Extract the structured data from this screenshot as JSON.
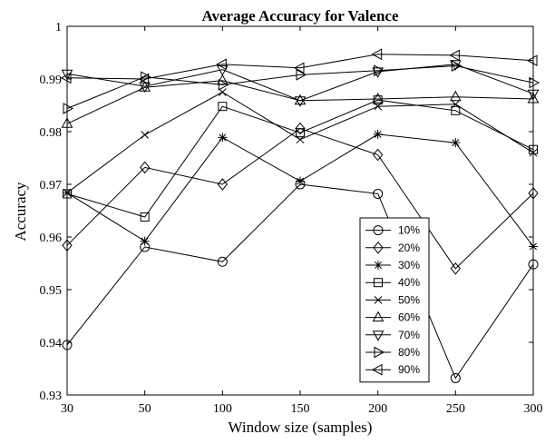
{
  "chart_data": {
    "type": "line",
    "title": "Average Accuracy for Valence",
    "xlabel": "Window size (samples)",
    "ylabel": "Accuracy",
    "categories": [
      "30",
      "50",
      "100",
      "150",
      "200",
      "250",
      "300"
    ],
    "ylim": [
      0.93,
      1.0
    ],
    "yticks": [
      "0.93",
      "0.94",
      "0.95",
      "0.96",
      "0.97",
      "0.98",
      "0.99",
      "1"
    ],
    "legend_position": "lower-right",
    "grid": false,
    "line_color": "#000000",
    "series": [
      {
        "name": "10%",
        "marker": "circle",
        "values": [
          0.9395,
          0.9581,
          0.9553,
          0.97,
          0.9682,
          0.9332,
          0.9548
        ]
      },
      {
        "name": "20%",
        "marker": "diamond",
        "values": [
          0.9584,
          0.9732,
          0.97,
          0.9806,
          0.9756,
          0.954,
          0.9683
        ]
      },
      {
        "name": "30%",
        "marker": "asterisk",
        "values": [
          0.9684,
          0.9592,
          0.9789,
          0.9706,
          0.9795,
          0.9779,
          0.9582
        ]
      },
      {
        "name": "40%",
        "marker": "square",
        "values": [
          0.9682,
          0.9638,
          0.9848,
          0.9798,
          0.986,
          0.984,
          0.9766
        ]
      },
      {
        "name": "50%",
        "marker": "x",
        "values": [
          0.9684,
          0.9794,
          0.9875,
          0.9785,
          0.9848,
          0.9852,
          0.976
        ]
      },
      {
        "name": "60%",
        "marker": "triangle-up",
        "values": [
          0.9815,
          0.9884,
          0.9897,
          0.9859,
          0.9862,
          0.9866,
          0.9862
        ]
      },
      {
        "name": "70%",
        "marker": "triangle-down",
        "values": [
          0.991,
          0.9886,
          0.9918,
          0.9859,
          0.9914,
          0.9928,
          0.9872
        ]
      },
      {
        "name": "80%",
        "marker": "triangle-right",
        "values": [
          0.9844,
          0.9904,
          0.9889,
          0.9908,
          0.9916,
          0.9925,
          0.9893
        ]
      },
      {
        "name": "90%",
        "marker": "triangle-left",
        "values": [
          0.9902,
          0.99,
          0.9928,
          0.9921,
          0.9947,
          0.9945,
          0.9935
        ]
      }
    ]
  }
}
